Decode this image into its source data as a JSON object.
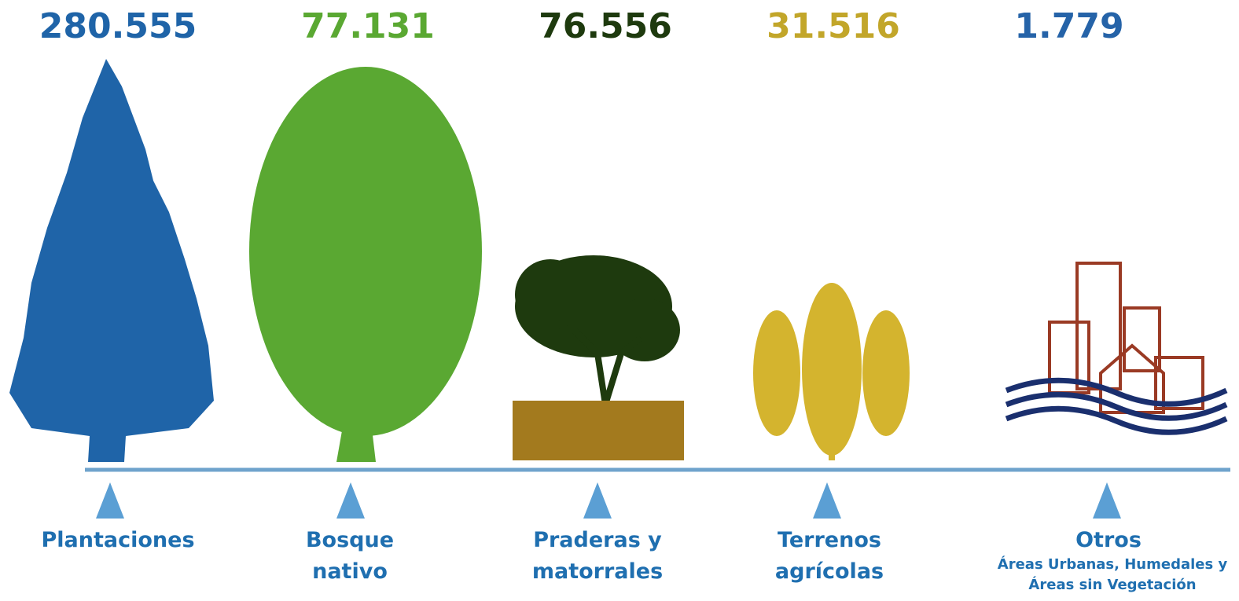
{
  "items": [
    {
      "value": "280.555",
      "label": "Plantaciones"
    },
    {
      "value": "77.131",
      "label": "Bosque nativo"
    },
    {
      "value": "76.556",
      "label": "Praderas y matorrales"
    },
    {
      "value": "31.516",
      "label": "Terrenos agrícolas"
    },
    {
      "value": "1.779",
      "label": "Otros",
      "sublabel": "Áreas Urbanas, Humedales y Áreas sin Vegetación"
    }
  ]
}
